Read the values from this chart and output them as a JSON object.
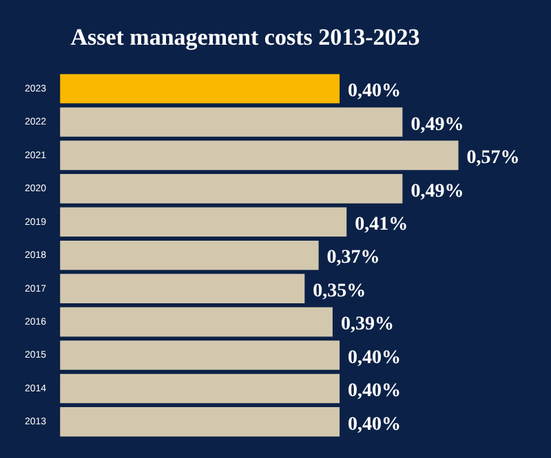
{
  "chart_data": {
    "type": "bar",
    "orientation": "horizontal",
    "title": "Asset management costs 2013-2023",
    "categories": [
      "2023",
      "2022",
      "2021",
      "2020",
      "2019",
      "2018",
      "2017",
      "2016",
      "2015",
      "2014",
      "2013"
    ],
    "values": [
      0.4,
      0.49,
      0.57,
      0.49,
      0.41,
      0.37,
      0.35,
      0.39,
      0.4,
      0.4,
      0.4
    ],
    "colors": [
      "#fbb800",
      "#d3c8ae",
      "#d3c8ae",
      "#d3c8ae",
      "#d3c8ae",
      "#d3c8ae",
      "#d3c8ae",
      "#d3c8ae",
      "#d3c8ae",
      "#d3c8ae",
      "#d3c8ae"
    ],
    "value_labels": [
      "0,40%",
      "0,49%",
      "0,57%",
      "0,49%",
      "0,41%",
      "0,37%",
      "0,35%",
      "0,39%",
      "0,40%",
      "0,40%",
      "0,40%"
    ],
    "tick_labels": "y"
  }
}
